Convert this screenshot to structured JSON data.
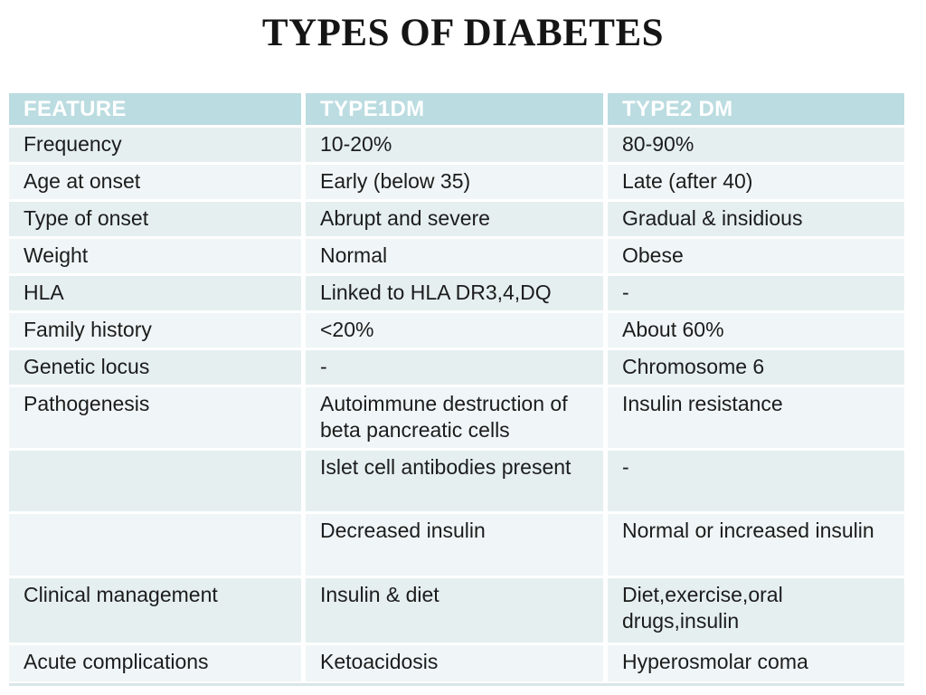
{
  "title": "TYPES OF DIABETES",
  "table": {
    "columns": [
      "FEATURE",
      "TYPE1DM",
      "TYPE2 DM"
    ],
    "rows": [
      [
        "Frequency",
        "10-20%",
        "80-90%"
      ],
      [
        "Age at onset",
        "Early (below 35)",
        "Late (after 40)"
      ],
      [
        "Type of onset",
        "Abrupt and severe",
        "Gradual & insidious"
      ],
      [
        "Weight",
        "Normal",
        "Obese"
      ],
      [
        "HLA",
        "Linked to HLA DR3,4,DQ",
        "-"
      ],
      [
        "Family history",
        "<20%",
        "About 60%"
      ],
      [
        "Genetic locus",
        "-",
        "Chromosome 6"
      ],
      [
        "Pathogenesis",
        "Autoimmune destruction of beta pancreatic cells",
        "Insulin resistance"
      ],
      [
        "",
        "Islet cell antibodies present",
        "-"
      ],
      [
        "",
        "Decreased insulin",
        "Normal or increased insulin"
      ],
      [
        "Clinical management",
        "Insulin & diet",
        "Diet,exercise,oral drugs,insulin"
      ],
      [
        "Acute complications",
        "Ketoacidosis",
        "Hyperosmolar coma"
      ]
    ]
  },
  "colors": {
    "header_bg": "#bbdce0",
    "row_odd": "#e5eff0",
    "row_even": "#f0f6f7",
    "separator": "#ffffff",
    "title_text": "#151515",
    "body_text": "#1c1c1c",
    "header_text": "#ffffff",
    "bottom_strip": "#d9e6e9"
  }
}
